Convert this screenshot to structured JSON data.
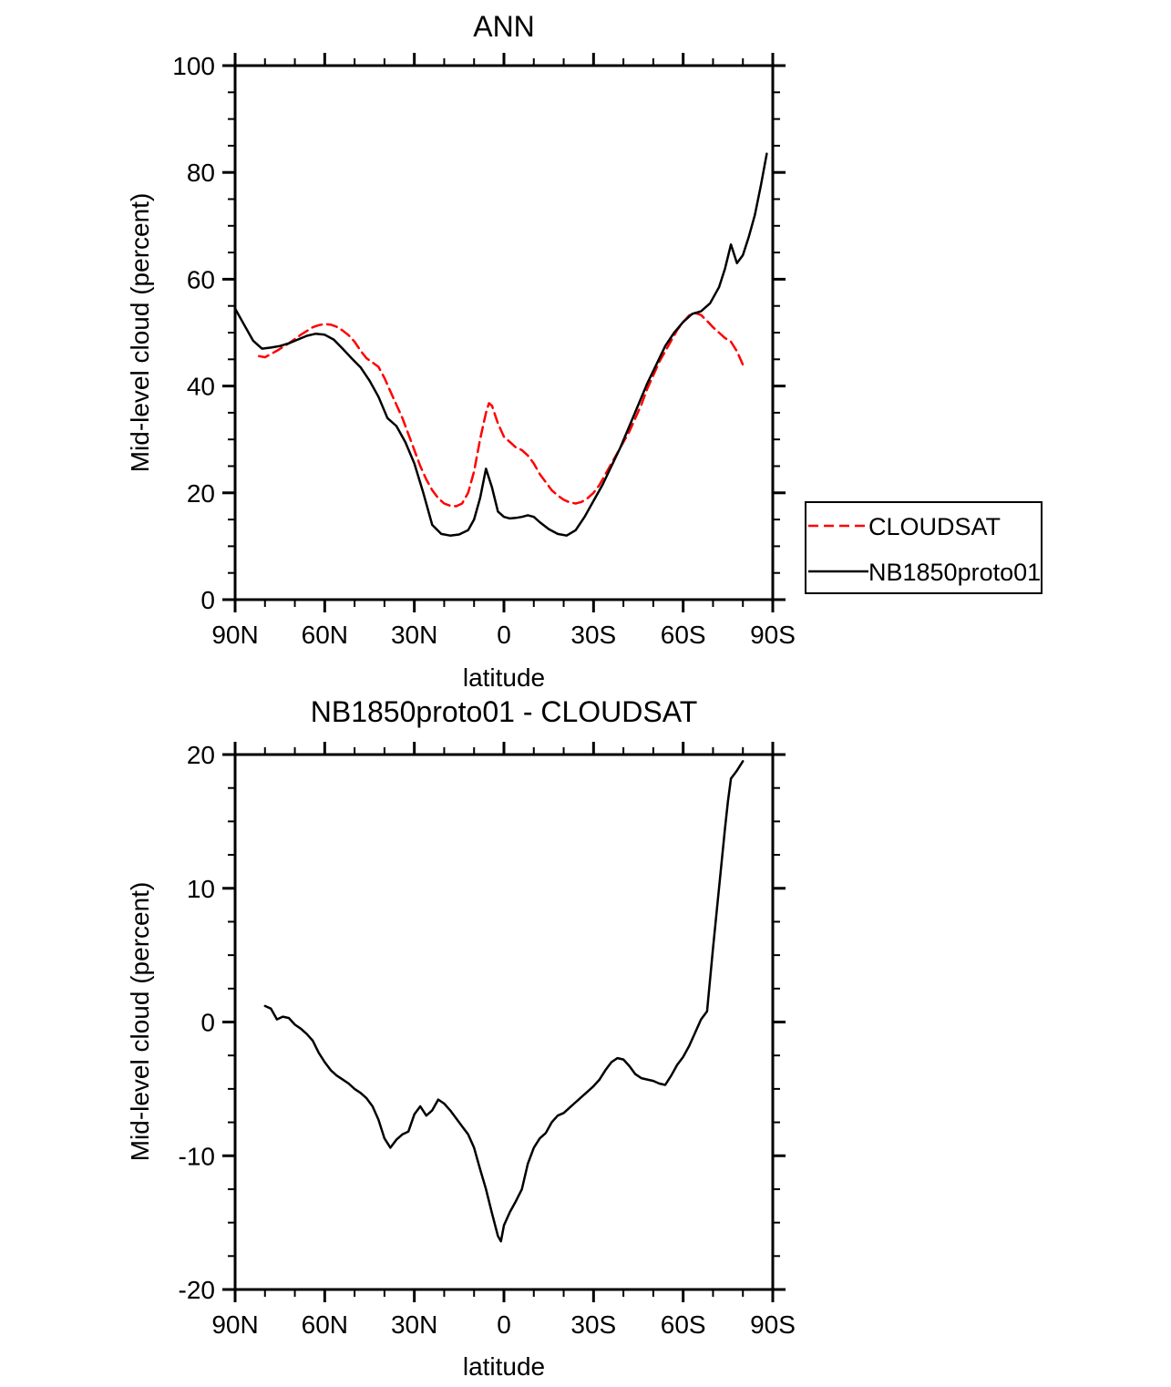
{
  "figure": {
    "background": "#ffffff"
  },
  "legend": {
    "entries": [
      {
        "label": "CLOUDSAT",
        "color": "#ff0000",
        "style": "dashed"
      },
      {
        "label": "NB1850proto01",
        "color": "#000000",
        "style": "solid"
      }
    ]
  },
  "chart_data": [
    {
      "type": "line",
      "title": "ANN",
      "xlabel": "latitude",
      "ylabel": "Mid-level cloud (percent)",
      "xlim": [
        90,
        -90
      ],
      "ylim": [
        0,
        100
      ],
      "grid": false,
      "legend_position": "outside-right",
      "x_ticks": {
        "major": [
          {
            "v": 90,
            "label": "90N"
          },
          {
            "v": 60,
            "label": "60N"
          },
          {
            "v": 30,
            "label": "30N"
          },
          {
            "v": 0,
            "label": "0"
          },
          {
            "v": -30,
            "label": "30S"
          },
          {
            "v": -60,
            "label": "60S"
          },
          {
            "v": -90,
            "label": "90S"
          }
        ],
        "minor_step": 10
      },
      "y_ticks": {
        "major": [
          {
            "v": 0,
            "label": "0"
          },
          {
            "v": 20,
            "label": "20"
          },
          {
            "v": 40,
            "label": "40"
          },
          {
            "v": 60,
            "label": "60"
          },
          {
            "v": 80,
            "label": "80"
          },
          {
            "v": 100,
            "label": "100"
          }
        ],
        "minor_step": 5
      },
      "series": [
        {
          "name": "CLOUDSAT",
          "color": "#ff0000",
          "style": "dashed",
          "x": [
            82,
            80,
            78,
            76,
            74,
            72,
            70,
            68,
            66,
            64,
            62,
            60,
            58,
            56,
            54,
            52,
            50,
            48,
            46,
            44,
            42,
            40,
            38,
            36,
            34,
            32,
            30,
            28,
            26,
            24,
            22,
            20,
            18,
            16,
            14,
            12,
            10,
            8,
            6,
            5,
            4,
            2,
            0,
            -2,
            -4,
            -6,
            -8,
            -10,
            -12,
            -14,
            -16,
            -18,
            -20,
            -22,
            -24,
            -26,
            -28,
            -30,
            -32,
            -34,
            -36,
            -38,
            -40,
            -42,
            -44,
            -46,
            -48,
            -50,
            -52,
            -54,
            -56,
            -58,
            -60,
            -62,
            -64,
            -66,
            -68,
            -70,
            -72,
            -74,
            -76,
            -78,
            -80
          ],
          "y": [
            45.6,
            45.4,
            46,
            46.6,
            47.3,
            48,
            48.8,
            49.6,
            50.3,
            51,
            51.4,
            51.6,
            51.5,
            51.1,
            50.4,
            49.5,
            48.3,
            46.6,
            45.2,
            44.4,
            43.6,
            41.5,
            39,
            36.5,
            34,
            31,
            28,
            25,
            22.5,
            20.5,
            19,
            18,
            17.6,
            17.5,
            18,
            20,
            24,
            30,
            35,
            36.8,
            36.3,
            33,
            30.5,
            29.5,
            28.5,
            28,
            27,
            25.5,
            23.5,
            22,
            20.5,
            19.5,
            18.7,
            18.2,
            18,
            18.3,
            19,
            20,
            21.5,
            23.5,
            25.5,
            27.5,
            29.5,
            31.5,
            34,
            36.5,
            39.5,
            42,
            44.5,
            46.5,
            48.5,
            50.5,
            52,
            53.2,
            53.7,
            53.3,
            52.2,
            51,
            50,
            49,
            48.3,
            46.5,
            44
          ]
        },
        {
          "name": "NB1850proto01",
          "color": "#000000",
          "style": "solid",
          "x": [
            90,
            87,
            84,
            81,
            78,
            75,
            72,
            69,
            66,
            63,
            60,
            57,
            54,
            51,
            48,
            45,
            42,
            39,
            36,
            33,
            30,
            27,
            24,
            21,
            18,
            15,
            12,
            10,
            8,
            6,
            4,
            2,
            0,
            -2,
            -4,
            -6,
            -8,
            -10,
            -12,
            -15,
            -18,
            -21,
            -24,
            -27,
            -30,
            -33,
            -36,
            -39,
            -42,
            -45,
            -48,
            -51,
            -54,
            -57,
            -60,
            -63,
            -66,
            -69,
            -72,
            -74,
            -76,
            -78,
            -80,
            -82,
            -84,
            -86,
            -88
          ],
          "y": [
            54.5,
            51.5,
            48.5,
            47,
            47.2,
            47.5,
            48,
            48.7,
            49.4,
            49.8,
            49.6,
            48.7,
            47,
            45.2,
            43.5,
            41,
            38,
            34,
            32.5,
            29.5,
            25.5,
            20,
            14,
            12.3,
            12,
            12.2,
            13,
            15,
            19,
            24.5,
            21,
            16.5,
            15.5,
            15.2,
            15.3,
            15.5,
            15.8,
            15.5,
            14.5,
            13.2,
            12.3,
            12,
            13,
            15.5,
            18.5,
            21.5,
            25,
            28.5,
            32.5,
            36.5,
            40.5,
            44,
            47.5,
            50,
            52,
            53.5,
            54,
            55.5,
            58.5,
            62,
            66.5,
            63,
            64.5,
            68,
            72,
            77.5,
            83.5
          ]
        }
      ]
    },
    {
      "type": "line",
      "title": "NB1850proto01 - CLOUDSAT",
      "xlabel": "latitude",
      "ylabel": "Mid-level cloud (percent)",
      "xlim": [
        90,
        -90
      ],
      "ylim": [
        -20,
        20
      ],
      "grid": false,
      "x_ticks": {
        "major": [
          {
            "v": 90,
            "label": "90N"
          },
          {
            "v": 60,
            "label": "60N"
          },
          {
            "v": 30,
            "label": "30N"
          },
          {
            "v": 0,
            "label": "0"
          },
          {
            "v": -30,
            "label": "30S"
          },
          {
            "v": -60,
            "label": "60S"
          },
          {
            "v": -90,
            "label": "90S"
          }
        ],
        "minor_step": 10
      },
      "y_ticks": {
        "major": [
          {
            "v": -20,
            "label": "-20"
          },
          {
            "v": -10,
            "label": "-10"
          },
          {
            "v": 0,
            "label": "0"
          },
          {
            "v": 10,
            "label": "10"
          },
          {
            "v": 20,
            "label": "20"
          }
        ],
        "minor_step": 2.5
      },
      "series": [
        {
          "name": "NB1850proto01 - CLOUDSAT",
          "color": "#000000",
          "style": "solid",
          "x": [
            80,
            78,
            76,
            74,
            72,
            70,
            68,
            66,
            64,
            62,
            60,
            58,
            56,
            54,
            52,
            50,
            48,
            46,
            44,
            42,
            40,
            38,
            36,
            34,
            32,
            30,
            28,
            26,
            24,
            22,
            20,
            18,
            16,
            14,
            12,
            10,
            8,
            6,
            4,
            2,
            1,
            0,
            -2,
            -4,
            -6,
            -8,
            -10,
            -12,
            -14,
            -16,
            -18,
            -20,
            -22,
            -24,
            -26,
            -28,
            -30,
            -32,
            -34,
            -36,
            -38,
            -40,
            -42,
            -44,
            -46,
            -48,
            -50,
            -52,
            -54,
            -56,
            -58,
            -60,
            -62,
            -64,
            -66,
            -68,
            -70,
            -72,
            -74,
            -75,
            -76,
            -78,
            -80
          ],
          "y": [
            1.2,
            1.0,
            0.2,
            0.4,
            0.3,
            -0.2,
            -0.5,
            -0.9,
            -1.4,
            -2.3,
            -3.0,
            -3.6,
            -4.0,
            -4.3,
            -4.6,
            -5.0,
            -5.3,
            -5.7,
            -6.3,
            -7.3,
            -8.7,
            -9.4,
            -8.8,
            -8.4,
            -8.2,
            -6.9,
            -6.3,
            -7.0,
            -6.6,
            -5.8,
            -6.1,
            -6.6,
            -7.2,
            -7.8,
            -8.4,
            -9.4,
            -11.0,
            -12.5,
            -14.3,
            -16.0,
            -16.4,
            -15.2,
            -14.2,
            -13.4,
            -12.5,
            -10.6,
            -9.4,
            -8.7,
            -8.3,
            -7.5,
            -7.0,
            -6.8,
            -6.4,
            -6.0,
            -5.6,
            -5.2,
            -4.8,
            -4.3,
            -3.6,
            -3.0,
            -2.7,
            -2.8,
            -3.3,
            -3.9,
            -4.2,
            -4.3,
            -4.4,
            -4.6,
            -4.7,
            -4.0,
            -3.2,
            -2.6,
            -1.8,
            -0.8,
            0.2,
            0.8,
            5.5,
            10.0,
            14.5,
            16.5,
            18.2,
            18.8,
            19.5
          ]
        }
      ]
    }
  ]
}
